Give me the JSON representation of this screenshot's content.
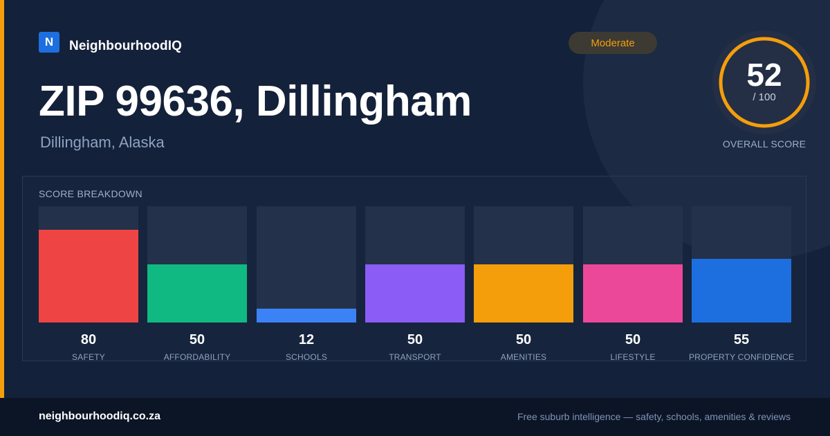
{
  "brand": {
    "logo_letter": "N",
    "name": "NeighbourhoodIQ",
    "brand_color": "#1d6fe0"
  },
  "status_badge": {
    "label": "Moderate",
    "color": "#f59e0b"
  },
  "header": {
    "title": "ZIP 99636, Dillingham",
    "subtitle": "Dillingham, Alaska"
  },
  "overall_score": {
    "value": "52",
    "max_text": "/ 100",
    "label": "OVERALL SCORE",
    "fraction": 0.52,
    "ring_color": "#f59e0b"
  },
  "breakdown": {
    "title": "SCORE BREAKDOWN",
    "items": [
      {
        "label": "SAFETY",
        "value": "80",
        "score": 80,
        "color": "#ef4444"
      },
      {
        "label": "AFFORDABILITY",
        "value": "50",
        "score": 50,
        "color": "#10b981"
      },
      {
        "label": "SCHOOLS",
        "value": "12",
        "score": 12,
        "color": "#3b82f6"
      },
      {
        "label": "TRANSPORT",
        "value": "50",
        "score": 50,
        "color": "#8b5cf6"
      },
      {
        "label": "AMENITIES",
        "value": "50",
        "score": 50,
        "color": "#f59e0b"
      },
      {
        "label": "LIFESTYLE",
        "value": "50",
        "score": 50,
        "color": "#ec4899"
      },
      {
        "label": "PROPERTY CONFIDENCE",
        "value": "55",
        "score": 55,
        "color": "#1d6fe0"
      }
    ]
  },
  "footer": {
    "domain": "neighbourhoodiq.co.za",
    "tagline": "Free suburb intelligence — safety, schools, amenities & reviews"
  }
}
